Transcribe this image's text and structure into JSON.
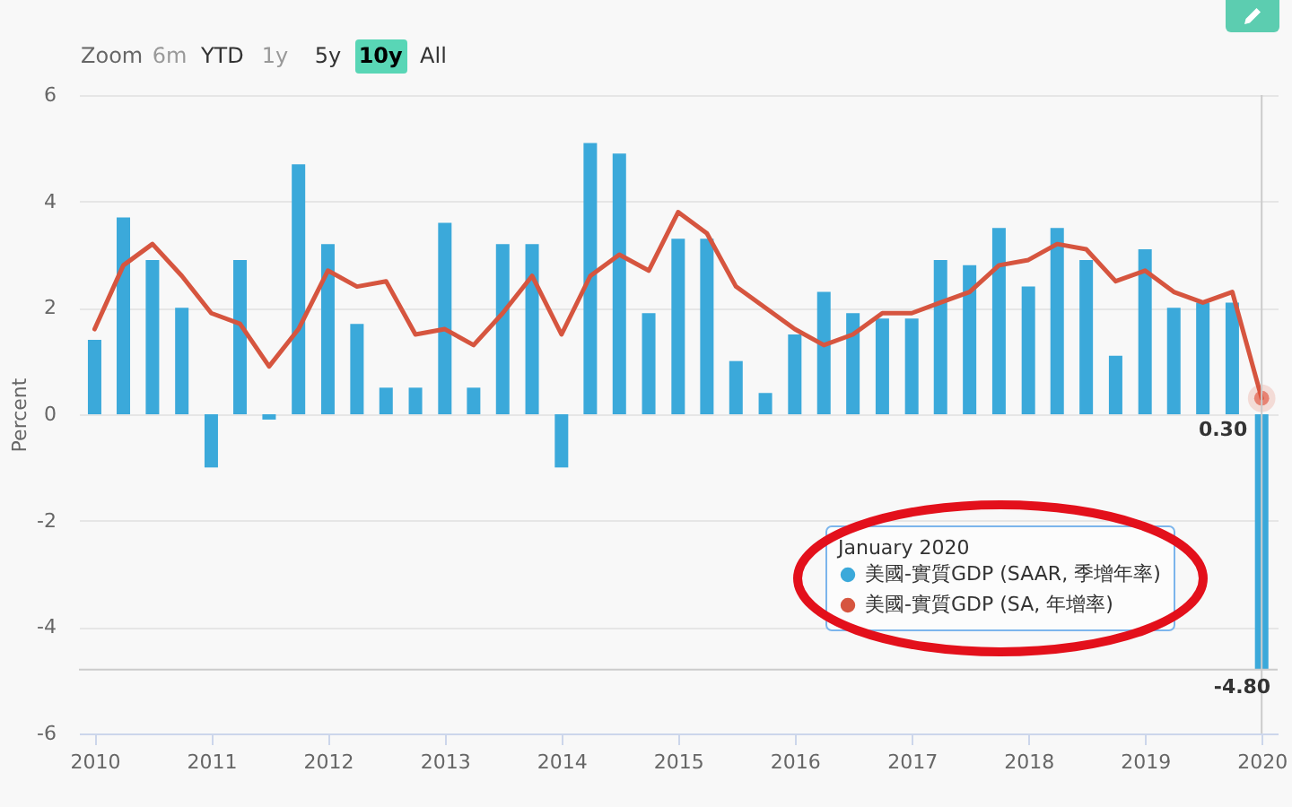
{
  "chart_data": {
    "type": "bar",
    "ylabel": "Percent",
    "x": [
      "2010-01",
      "2010-04",
      "2010-07",
      "2010-10",
      "2011-01",
      "2011-04",
      "2011-07",
      "2011-10",
      "2012-01",
      "2012-04",
      "2012-07",
      "2012-10",
      "2013-01",
      "2013-04",
      "2013-07",
      "2013-10",
      "2014-01",
      "2014-04",
      "2014-07",
      "2014-10",
      "2015-01",
      "2015-04",
      "2015-07",
      "2015-10",
      "2016-01",
      "2016-04",
      "2016-07",
      "2016-10",
      "2017-01",
      "2017-04",
      "2017-07",
      "2017-10",
      "2018-01",
      "2018-04",
      "2018-07",
      "2018-10",
      "2019-01",
      "2019-04",
      "2019-07",
      "2019-10",
      "2020-01"
    ],
    "series": [
      {
        "name": "美國-實質GDP (SAAR, 季增年率)",
        "color": "#3ba9da",
        "values": [
          1.4,
          3.7,
          2.9,
          2.0,
          -1.0,
          2.9,
          -0.1,
          4.7,
          3.2,
          1.7,
          0.5,
          0.5,
          3.6,
          0.5,
          3.2,
          3.2,
          -1.0,
          5.1,
          4.9,
          1.9,
          3.3,
          3.3,
          1.0,
          0.4,
          1.5,
          2.3,
          1.9,
          1.8,
          1.8,
          2.9,
          2.8,
          3.5,
          2.4,
          3.5,
          2.9,
          1.1,
          3.1,
          2.0,
          2.1,
          2.1,
          -4.8
        ],
        "value_labels": [
          null,
          null,
          null,
          null,
          null,
          null,
          null,
          null,
          null,
          null,
          null,
          null,
          null,
          null,
          null,
          null,
          null,
          null,
          null,
          null,
          null,
          null,
          null,
          null,
          null,
          null,
          null,
          null,
          null,
          null,
          null,
          null,
          null,
          null,
          null,
          null,
          null,
          null,
          null,
          null,
          "-4.80"
        ]
      },
      {
        "name": "美國-實質GDP (SA, 年增率)",
        "type": "line",
        "color": "#d6553f",
        "values": [
          1.6,
          2.8,
          3.2,
          2.6,
          1.9,
          1.7,
          0.9,
          1.6,
          2.7,
          2.4,
          2.5,
          1.5,
          1.6,
          1.3,
          1.9,
          2.6,
          1.5,
          2.6,
          3.0,
          2.7,
          3.8,
          3.4,
          2.4,
          2.0,
          1.6,
          1.3,
          1.5,
          1.9,
          1.9,
          2.1,
          2.3,
          2.8,
          2.9,
          3.2,
          3.1,
          2.5,
          2.7,
          2.3,
          2.1,
          2.3,
          0.3
        ],
        "value_labels": [
          null,
          null,
          null,
          null,
          null,
          null,
          null,
          null,
          null,
          null,
          null,
          null,
          null,
          null,
          null,
          null,
          null,
          null,
          null,
          null,
          null,
          null,
          null,
          null,
          null,
          null,
          null,
          null,
          null,
          null,
          null,
          null,
          null,
          null,
          null,
          null,
          null,
          null,
          null,
          null,
          "0.30"
        ]
      },
      {
        "type": "scatter",
        "color": "#e0533c",
        "x": [
          "2020-01"
        ],
        "values": [
          0.3
        ]
      }
    ],
    "xlim": [
      "2009-11-13",
      "2020-02-20"
    ],
    "xticks": [
      "2010",
      "2011",
      "2012",
      "2013",
      "2014",
      "2015",
      "2016",
      "2017",
      "2018",
      "2019",
      "2020"
    ],
    "ylim": [
      -6,
      6
    ],
    "yticks": [
      -6,
      -4,
      -2,
      0,
      2,
      4,
      6
    ],
    "grid": "y",
    "legend": "bottom right",
    "legend_title": "January 2020",
    "ref_lines": [
      {
        "axis": "x",
        "value": "2020-01",
        "color": "#cccccc"
      },
      {
        "axis": "y",
        "value": -4.8,
        "color": "#cccccc"
      }
    ],
    "annotations": [
      "Zoom",
      "6m",
      "YTD",
      "1y",
      "5y",
      "10y",
      "All"
    ]
  }
}
